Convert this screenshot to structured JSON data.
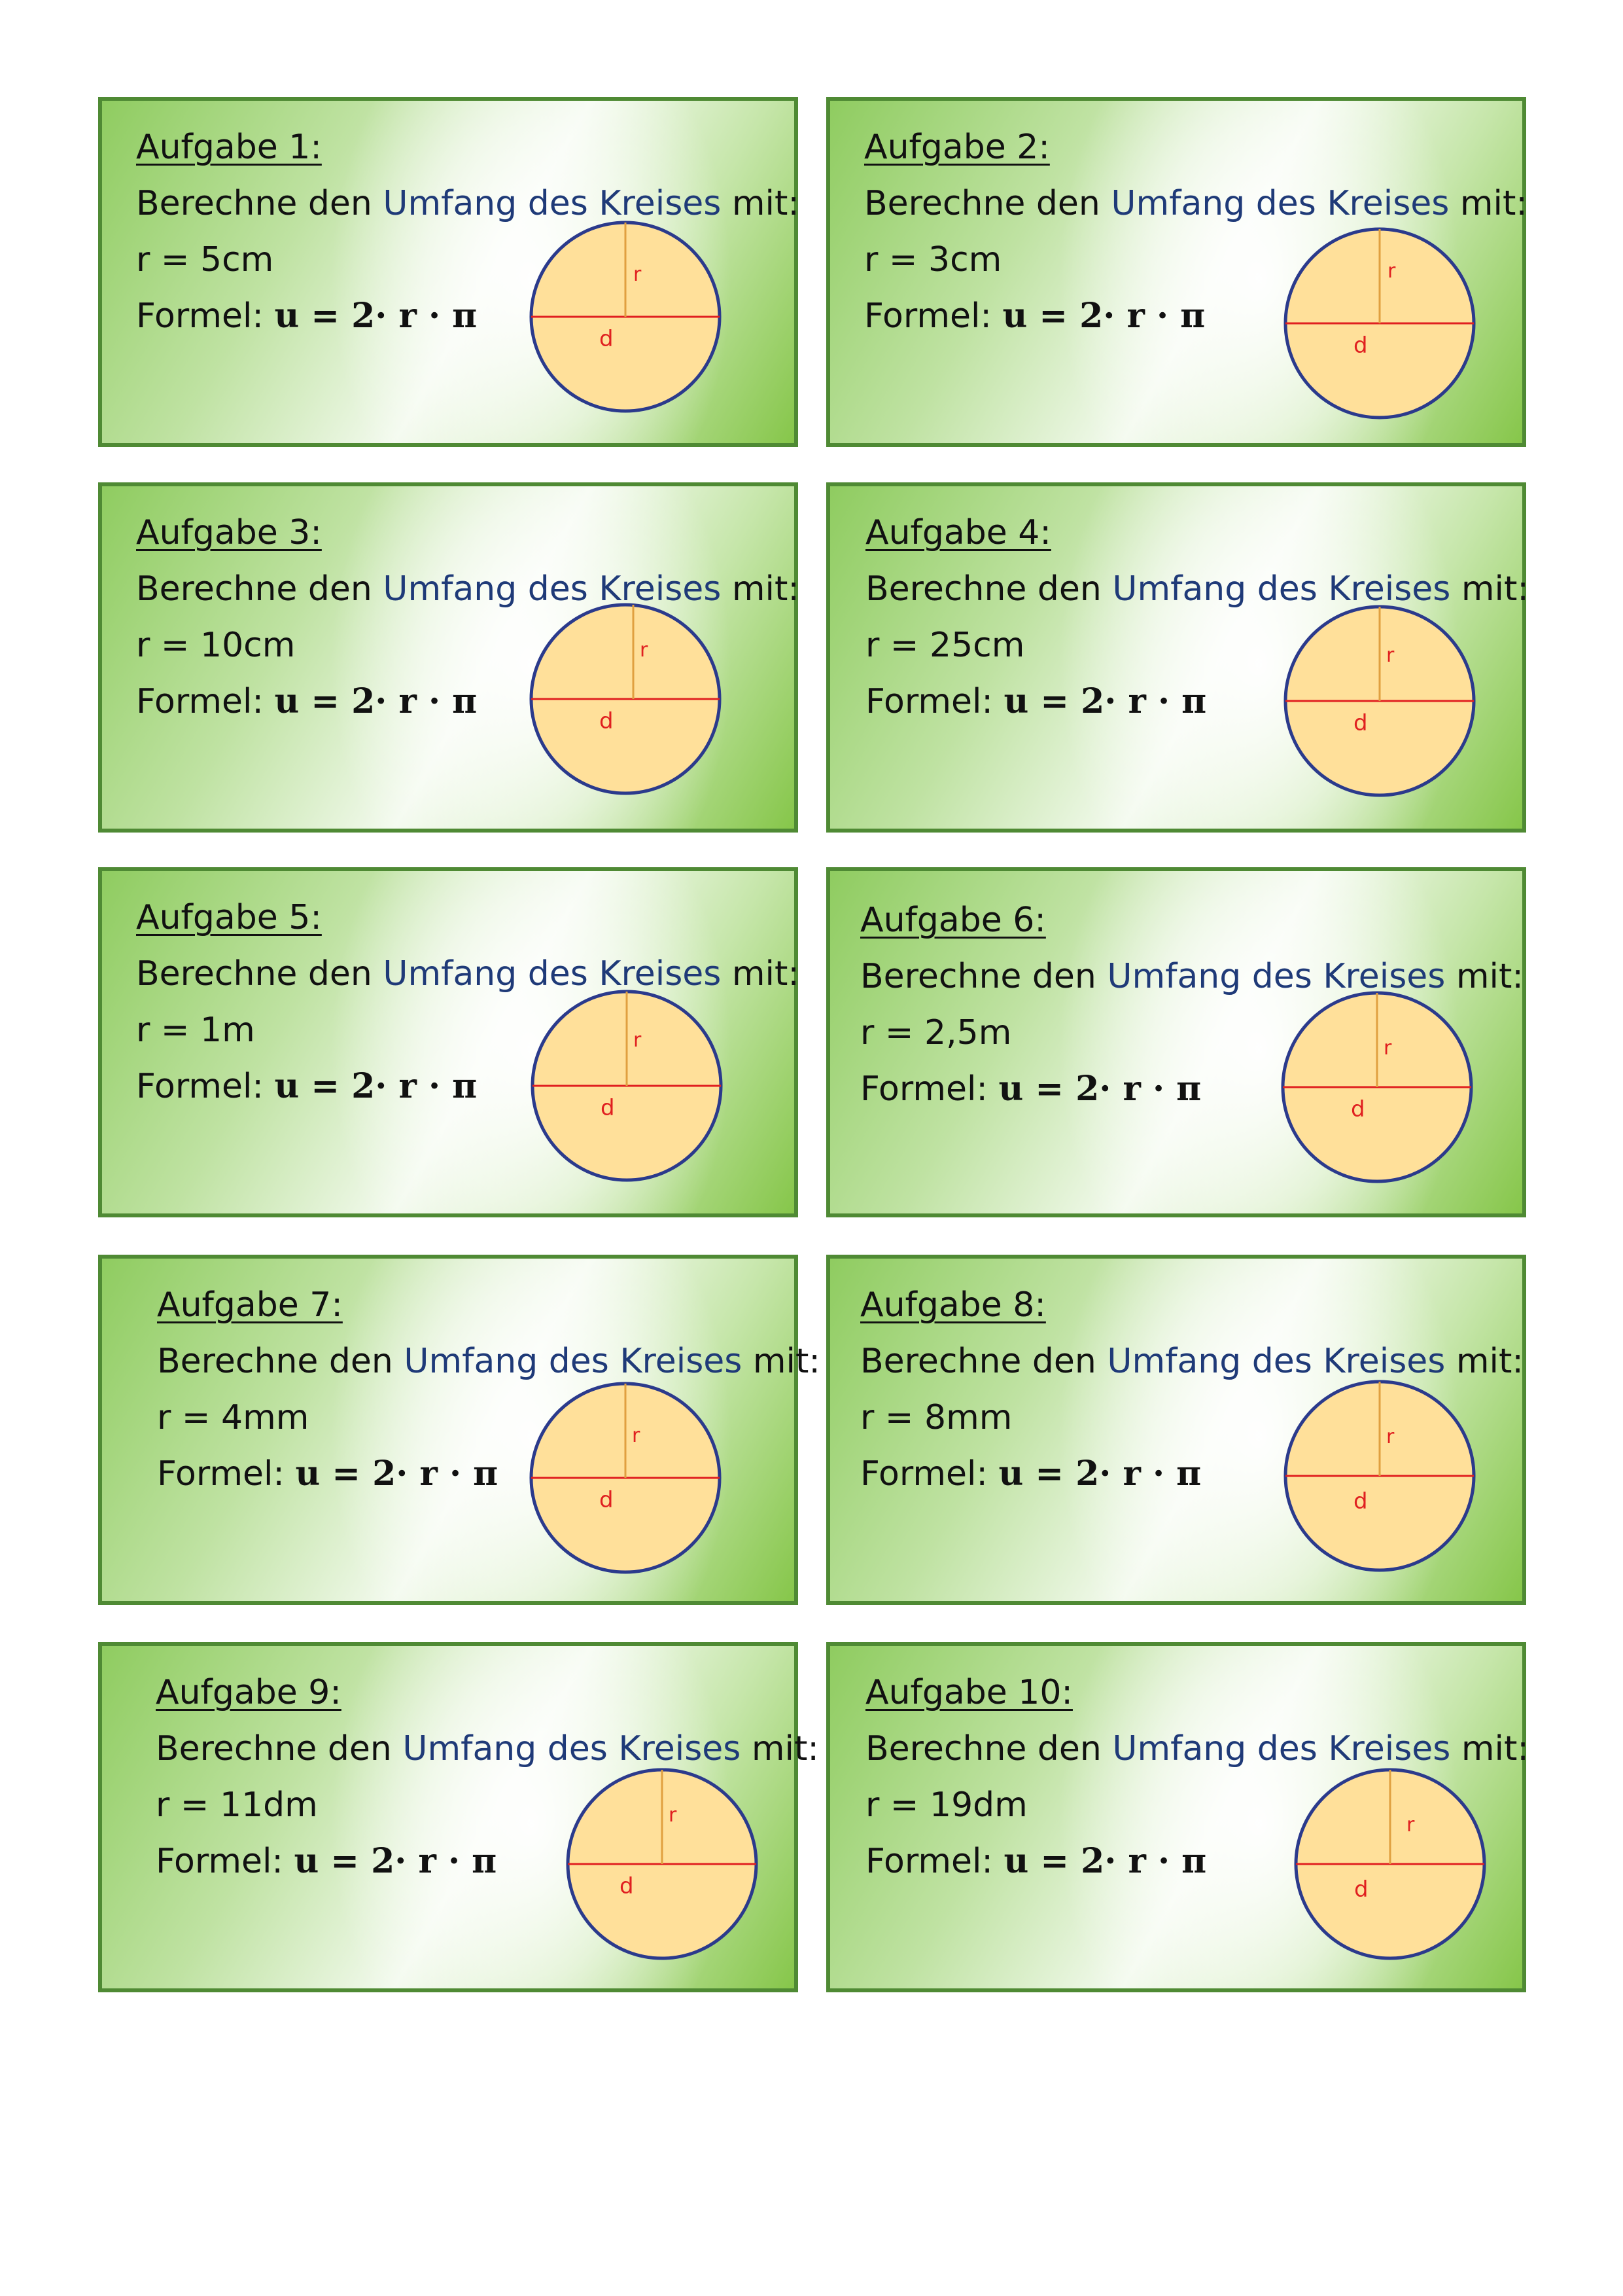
{
  "cards": [
    {
      "title": "Aufgabe 1:",
      "line_pre": "Berechne den",
      "line_hl": "Umfang des Kreises",
      "line_post": "mit:",
      "radius": "r = 5cm",
      "formula_label": "Formel:",
      "formula": "u = 2· r · π",
      "circle_r_label": "r",
      "circle_d_label": "d"
    },
    {
      "title": "Aufgabe 2:",
      "line_pre": "Berechne den",
      "line_hl": "Umfang des Kreises",
      "line_post": "mit:",
      "radius": "r = 3cm",
      "formula_label": "Formel:",
      "formula": "u = 2· r · π",
      "circle_r_label": "r",
      "circle_d_label": "d"
    },
    {
      "title": "Aufgabe 3:",
      "line_pre": "Berechne den",
      "line_hl": "Umfang des Kreises",
      "line_post": "mit:",
      "radius": "r = 10cm",
      "formula_label": "Formel:",
      "formula": "u = 2· r · π",
      "circle_r_label": "r",
      "circle_d_label": "d"
    },
    {
      "title": "Aufgabe 4:",
      "line_pre": "Berechne den",
      "line_hl": "Umfang des Kreises",
      "line_post": "mit:",
      "radius": "r = 25cm",
      "formula_label": "Formel:",
      "formula": "u = 2· r · π",
      "circle_r_label": "r",
      "circle_d_label": "d"
    },
    {
      "title": "Aufgabe 5:",
      "line_pre": "Berechne den",
      "line_hl": "Umfang des Kreises",
      "line_post": "mit:",
      "radius": "r = 1m",
      "formula_label": "Formel:",
      "formula": "u = 2· r · π",
      "circle_r_label": "r",
      "circle_d_label": "d"
    },
    {
      "title": "Aufgabe 6:",
      "line_pre": "Berechne den",
      "line_hl": "Umfang des Kreises",
      "line_post": "mit:",
      "radius": "r = 2,5m",
      "formula_label": "Formel:",
      "formula": "u = 2· r · π",
      "circle_r_label": "r",
      "circle_d_label": "d"
    },
    {
      "title": "Aufgabe 7:",
      "line_pre": "Berechne den",
      "line_hl": "Umfang des Kreises",
      "line_post": "mit:",
      "radius": "r = 4mm",
      "formula_label": "Formel:",
      "formula": "u = 2· r · π",
      "circle_r_label": "r",
      "circle_d_label": "d"
    },
    {
      "title": "Aufgabe 8:",
      "line_pre": "Berechne den",
      "line_hl": "Umfang des Kreises",
      "line_post": "mit:",
      "radius": "r = 8mm",
      "formula_label": "Formel:",
      "formula": "u = 2· r · π",
      "circle_r_label": "r",
      "circle_d_label": "d"
    },
    {
      "title": "Aufgabe 9:",
      "line_pre": "Berechne den",
      "line_hl": "Umfang des Kreises",
      "line_post": "mit:",
      "radius": "r = 11dm",
      "formula_label": "Formel:",
      "formula": "u = 2· r · π",
      "circle_r_label": "r",
      "circle_d_label": "d"
    },
    {
      "title": "Aufgabe 10:",
      "line_pre": "Berechne den",
      "line_hl": "Umfang des Kreises",
      "line_post": "mit:",
      "radius": "r = 19dm",
      "formula_label": "Formel:",
      "formula": "u = 2· r · π",
      "circle_r_label": "r",
      "circle_d_label": "d"
    }
  ],
  "colors": {
    "card_border": "#4f8a34",
    "highlight_text": "#1f3a78",
    "circle_fill": "#ffe09a",
    "circle_stroke": "#2b3a8c",
    "line_color": "#e02020",
    "label_color": "#e02020"
  }
}
